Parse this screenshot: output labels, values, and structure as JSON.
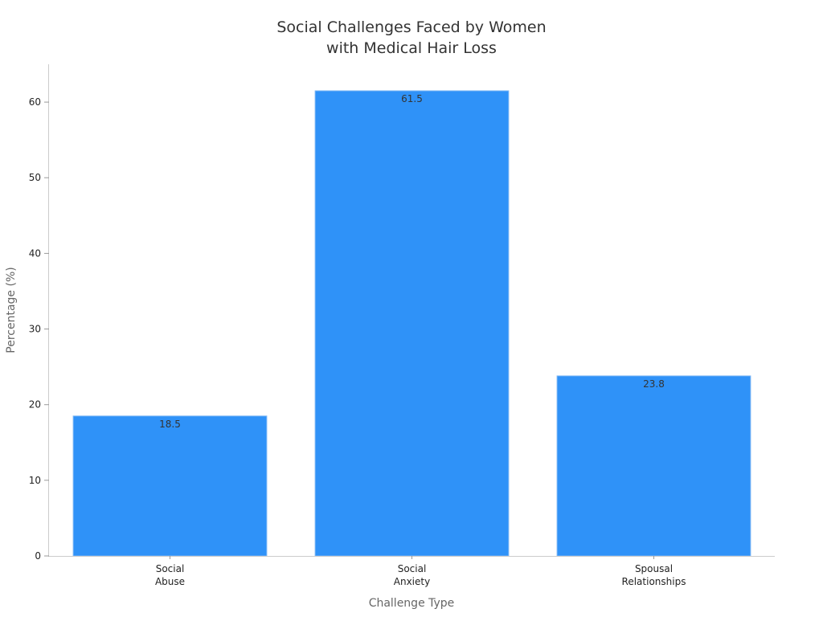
{
  "chart_data": {
    "type": "bar",
    "title": [
      "Social Challenges Faced by Women",
      "with Medical Hair Loss"
    ],
    "xlabel": "Challenge Type",
    "ylabel": "Percentage (%)",
    "categories": [
      [
        "Social",
        "Abuse"
      ],
      [
        "Social",
        "Anxiety"
      ],
      [
        "Spousal",
        "Relationships"
      ]
    ],
    "values": [
      18.5,
      61.5,
      23.8
    ],
    "data_labels": [
      "18.5",
      "61.5",
      "23.8"
    ],
    "ylim": [
      0,
      65
    ],
    "yticks": [
      0,
      10,
      20,
      30,
      40,
      50,
      60
    ],
    "grid": false,
    "legend": "none",
    "bar_color": "#2f92f8"
  }
}
